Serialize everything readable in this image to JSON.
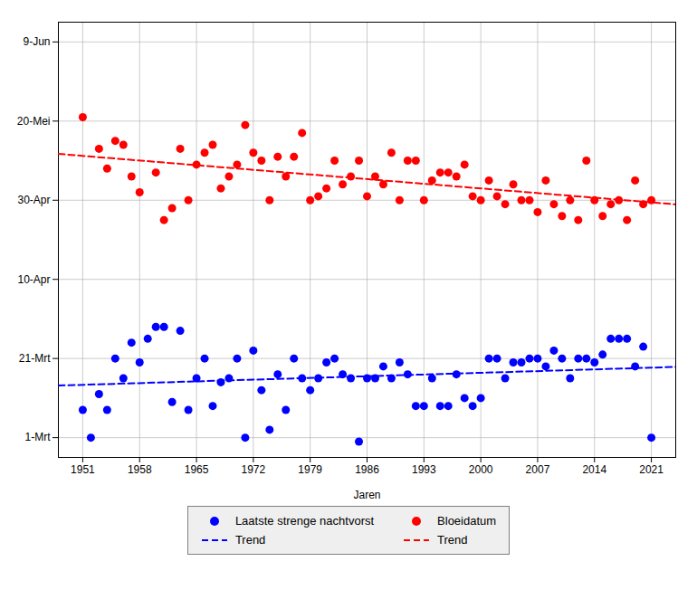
{
  "chart_data": {
    "type": "scatter",
    "xlabel": "Jaren",
    "xlim": [
      1948,
      2024
    ],
    "ylim": [
      55,
      165
    ],
    "xticks": [
      1951,
      1958,
      1965,
      1972,
      1979,
      1986,
      1993,
      2000,
      2007,
      2014,
      2021
    ],
    "yticks": [
      {
        "value": 60,
        "label": "1-Mrt"
      },
      {
        "value": 80,
        "label": "21-Mrt"
      },
      {
        "value": 100,
        "label": "10-Apr"
      },
      {
        "value": 120,
        "label": "30-Apr"
      },
      {
        "value": 140,
        "label": "20-Mei"
      },
      {
        "value": 160,
        "label": "9-Jun"
      }
    ],
    "grid": true,
    "legend": "bottom",
    "series": [
      {
        "name": "Laatste strenge nachtvorst",
        "type": "scatter",
        "marker": "o",
        "color": "#0000ff",
        "x": [
          1951,
          1952,
          1953,
          1954,
          1955,
          1956,
          1957,
          1958,
          1959,
          1960,
          1961,
          1962,
          1963,
          1964,
          1965,
          1966,
          1967,
          1968,
          1969,
          1970,
          1971,
          1972,
          1973,
          1974,
          1975,
          1976,
          1977,
          1978,
          1979,
          1980,
          1981,
          1982,
          1983,
          1984,
          1985,
          1986,
          1987,
          1988,
          1989,
          1990,
          1991,
          1992,
          1993,
          1994,
          1995,
          1996,
          1997,
          1998,
          1999,
          2000,
          2001,
          2002,
          2003,
          2004,
          2005,
          2006,
          2007,
          2008,
          2009,
          2010,
          2011,
          2012,
          2013,
          2014,
          2015,
          2016,
          2017,
          2018,
          2019,
          2020,
          2021
        ],
        "values": [
          67,
          60,
          71,
          67,
          80,
          75,
          84,
          79,
          85,
          88,
          88,
          69,
          87,
          67,
          75,
          80,
          68,
          74,
          75,
          80,
          60,
          82,
          72,
          62,
          76,
          67,
          80,
          75,
          72,
          75,
          79,
          80,
          76,
          75,
          59,
          75,
          75,
          78,
          75,
          79,
          76,
          68,
          68,
          75,
          68,
          68,
          76,
          70,
          68,
          70,
          80,
          80,
          75,
          79,
          79,
          80,
          80,
          78,
          82,
          80,
          75,
          80,
          80,
          79,
          81,
          85,
          85,
          85,
          78,
          83,
          60
        ]
      },
      {
        "name": "Bloeidatum",
        "type": "scatter",
        "marker": "o",
        "color": "#ff0000",
        "x": [
          1951,
          1953,
          1954,
          1955,
          1956,
          1957,
          1958,
          1960,
          1961,
          1962,
          1963,
          1964,
          1965,
          1966,
          1967,
          1968,
          1969,
          1970,
          1971,
          1972,
          1973,
          1974,
          1975,
          1976,
          1977,
          1978,
          1979,
          1980,
          1981,
          1982,
          1983,
          1984,
          1985,
          1986,
          1987,
          1988,
          1989,
          1990,
          1991,
          1992,
          1993,
          1994,
          1995,
          1996,
          1997,
          1998,
          1999,
          2000,
          2001,
          2002,
          2003,
          2004,
          2005,
          2006,
          2007,
          2008,
          2009,
          2010,
          2011,
          2012,
          2013,
          2014,
          2015,
          2016,
          2017,
          2018,
          2019,
          2020,
          2021
        ],
        "values": [
          141,
          133,
          128,
          135,
          134,
          126,
          122,
          127,
          115,
          118,
          133,
          120,
          129,
          132,
          134,
          123,
          126,
          129,
          139,
          132,
          130,
          120,
          131,
          126,
          131,
          137,
          120,
          121,
          123,
          130,
          124,
          126,
          130,
          121,
          126,
          124,
          132,
          120,
          130,
          130,
          120,
          125,
          127,
          127,
          126,
          129,
          121,
          120,
          125,
          121,
          119,
          124,
          120,
          120,
          117,
          125,
          119,
          116,
          120,
          115,
          130,
          120,
          116,
          119,
          120,
          115,
          125,
          119,
          120
        ]
      },
      {
        "name": "Trend",
        "type": "line",
        "line_style": "dashed",
        "color": "#0000ff",
        "x": [
          1948,
          2024
        ],
        "values": [
          73.1675,
          77.8748
        ]
      },
      {
        "name": "Trend",
        "type": "line",
        "line_style": "dashed",
        "color": "#ff0000",
        "x": [
          1948,
          2024
        ],
        "values": [
          131.7146,
          118.959
        ]
      }
    ]
  }
}
